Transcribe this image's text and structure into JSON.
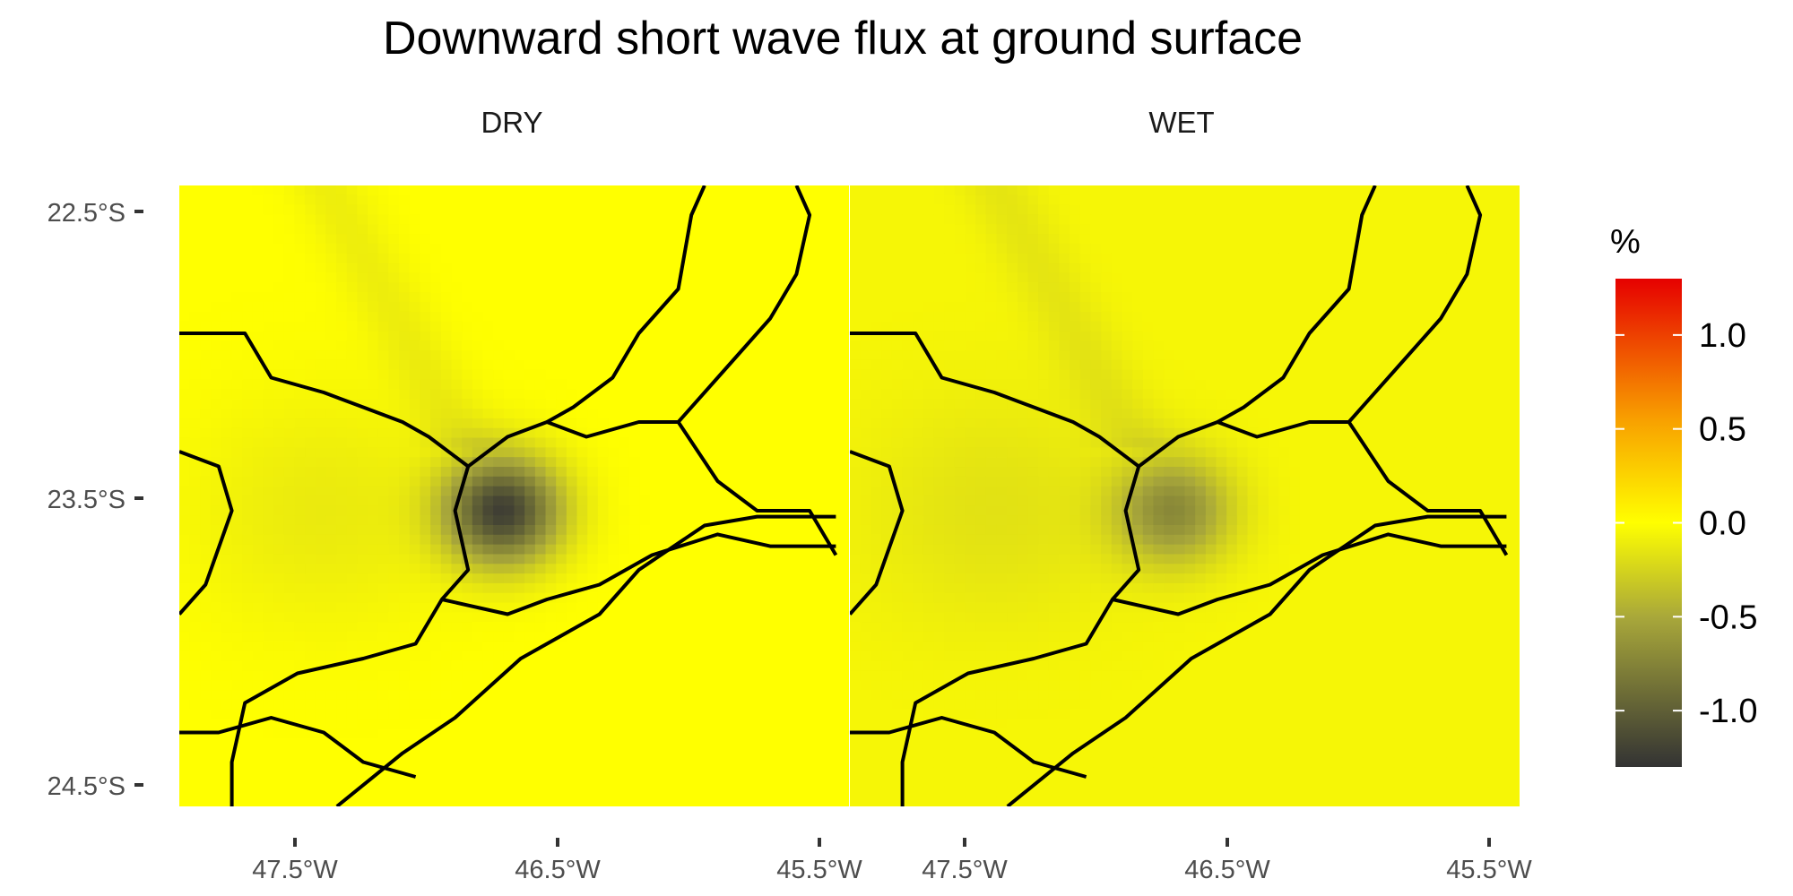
{
  "chart_data": {
    "type": "heatmap",
    "title": "Downward short wave flux at ground surface",
    "panels": [
      {
        "name": "DRY",
        "hotspot": {
          "lon": -46.72,
          "lat": -23.6,
          "value": -1.2
        },
        "background_value": 0.0
      },
      {
        "name": "WET",
        "hotspot": {
          "lon": -46.72,
          "lat": -23.6,
          "value": -0.65
        },
        "background_value": -0.05
      }
    ],
    "x": {
      "type": "longitude",
      "range": [
        -47.95,
        -45.4
      ],
      "ticks": [
        -47.5,
        -46.5,
        -45.5
      ],
      "tick_labels": [
        "47.5°W",
        "46.5°W",
        "45.5°W"
      ]
    },
    "y": {
      "type": "latitude",
      "range": [
        -24.6,
        -22.5
      ],
      "ticks": [
        -22.5,
        -23.5,
        -24.5
      ],
      "tick_labels": [
        "22.5°S",
        "23.5°S",
        "24.5°S"
      ]
    },
    "legend": {
      "title": "%",
      "position": "right",
      "range": [
        -1.3,
        1.3
      ],
      "ticks": [
        1.0,
        0.5,
        0.0,
        -0.5,
        -1.0
      ],
      "tick_labels": [
        "1.0",
        "0.5",
        "0.0",
        "-0.5",
        "-1.0"
      ],
      "colors": [
        {
          "value": -1.3,
          "color": "#333333"
        },
        {
          "value": -0.5,
          "color": "#a9a83a"
        },
        {
          "value": 0.0,
          "color": "#ffff00"
        },
        {
          "value": 0.55,
          "color": "#f8a000"
        },
        {
          "value": 1.3,
          "color": "#e60000"
        }
      ]
    }
  }
}
